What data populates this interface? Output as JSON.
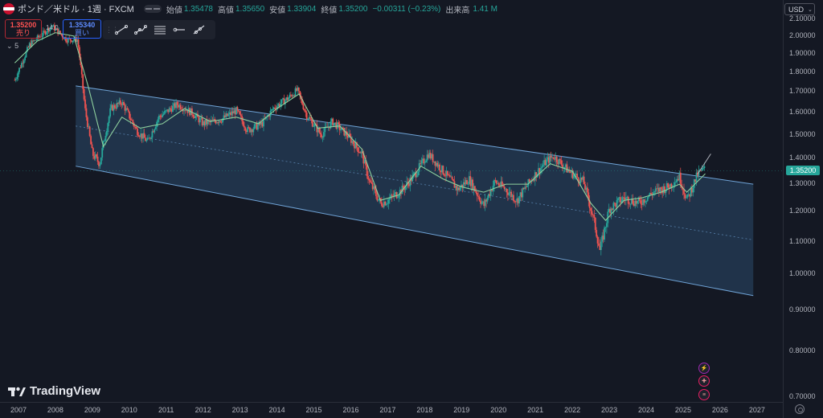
{
  "header": {
    "symbol": "ポンド／米ドル · 1週 · FXCM",
    "open_label": "始値",
    "open": "1.35478",
    "high_label": "高値",
    "high": "1.35650",
    "low_label": "安値",
    "low": "1.33904",
    "close_label": "終値",
    "close": "1.35200",
    "change": "−0.00311 (−0.23%)",
    "volume_label": "出来高",
    "volume": "1.41 M"
  },
  "trade": {
    "sell_price": "1.35200",
    "sell_label": "売り",
    "spread": "14.0",
    "buy_price": "1.35340",
    "buy_label": "買い"
  },
  "indicator": {
    "label": "5",
    "chevron": "⌄"
  },
  "currency": {
    "label": "USD",
    "chevron": "⌄"
  },
  "last_price_tag": "1.35200",
  "logo_text": "TradingView",
  "toolbar_icons": [
    "trend-line-icon",
    "multi-point-icon",
    "fib-lines-icon",
    "horizontal-ray-icon",
    "ray-icon"
  ],
  "colors": {
    "background": "#141823",
    "up": "#26a69a",
    "down": "#ef5350",
    "ma": "#8fd19e",
    "channel_fill": "#2a4a6b",
    "channel_edge": "#6fa3d6"
  },
  "chart_data": {
    "type": "candlestick",
    "series": [
      {
        "name": "",
        "type": "weekly price (approx. path)",
        "x": [
          2006.9,
          2007.3,
          2007.7,
          2007.9,
          2008.3,
          2008.6,
          2008.8,
          2009.0,
          2009.2,
          2009.5,
          2009.8,
          2010.2,
          2010.5,
          2010.8,
          2011.3,
          2011.7,
          2012.0,
          2012.5,
          2012.9,
          2013.2,
          2013.6,
          2013.9,
          2014.3,
          2014.55,
          2014.8,
          2015.2,
          2015.5,
          2015.9,
          2016.3,
          2016.5,
          2016.8,
          2017.0,
          2017.4,
          2017.7,
          2018.1,
          2018.5,
          2018.9,
          2019.2,
          2019.6,
          2019.9,
          2020.2,
          2020.5,
          2020.9,
          2021.3,
          2021.5,
          2021.9,
          2022.3,
          2022.6,
          2022.75,
          2023.0,
          2023.4,
          2023.8,
          2024.2,
          2024.6,
          2024.9,
          2025.1,
          2025.4,
          2025.6
        ],
        "y": [
          1.76,
          1.95,
          2.02,
          2.06,
          1.98,
          1.98,
          1.62,
          1.42,
          1.38,
          1.62,
          1.65,
          1.52,
          1.47,
          1.58,
          1.64,
          1.6,
          1.55,
          1.57,
          1.61,
          1.52,
          1.55,
          1.62,
          1.67,
          1.71,
          1.59,
          1.5,
          1.56,
          1.5,
          1.42,
          1.31,
          1.23,
          1.24,
          1.28,
          1.33,
          1.42,
          1.35,
          1.28,
          1.32,
          1.22,
          1.31,
          1.28,
          1.24,
          1.32,
          1.39,
          1.41,
          1.35,
          1.31,
          1.16,
          1.07,
          1.21,
          1.25,
          1.23,
          1.27,
          1.29,
          1.33,
          1.24,
          1.34,
          1.36
        ]
      },
      {
        "name": "",
        "type": "moving average",
        "x": [
          2006.9,
          2007.5,
          2008.0,
          2008.5,
          2008.9,
          2009.3,
          2009.8,
          2010.3,
          2010.9,
          2011.5,
          2012.2,
          2012.9,
          2013.5,
          2014.0,
          2014.6,
          2015.1,
          2015.7,
          2016.3,
          2016.8,
          2017.3,
          2017.9,
          2018.5,
          2019.0,
          2019.6,
          2020.2,
          2020.8,
          2021.4,
          2022.0,
          2022.5,
          2022.9,
          2023.4,
          2023.9,
          2024.4,
          2024.9,
          2025.1,
          2025.6
        ],
        "y": [
          1.85,
          1.97,
          2.02,
          2.0,
          1.72,
          1.45,
          1.58,
          1.53,
          1.55,
          1.62,
          1.56,
          1.58,
          1.55,
          1.62,
          1.69,
          1.53,
          1.54,
          1.44,
          1.24,
          1.26,
          1.37,
          1.32,
          1.29,
          1.27,
          1.3,
          1.3,
          1.38,
          1.35,
          1.23,
          1.17,
          1.24,
          1.25,
          1.27,
          1.3,
          1.27,
          1.34
        ]
      }
    ],
    "channel": {
      "upper": {
        "x": [
          2008.55,
          2026.9
        ],
        "y": [
          1.73,
          1.3
        ]
      },
      "lower": {
        "x": [
          2008.55,
          2026.9
        ],
        "y": [
          1.37,
          0.94
        ]
      },
      "mid_dashed": true
    },
    "trend_arrow": {
      "x": [
        2025.4,
        2025.75
      ],
      "y": [
        1.34,
        1.42
      ]
    },
    "last_price": 1.352,
    "y_ticks": [
      2.1,
      2.0,
      1.9,
      1.8,
      1.7,
      1.6,
      1.5,
      1.4,
      1.3,
      1.2,
      1.1,
      1.0,
      0.9,
      0.8,
      0.7
    ],
    "y_tick_labels": [
      "2.10000",
      "2.00000",
      "1.90000",
      "1.80000",
      "1.70000",
      "1.60000",
      "1.50000",
      "1.40000",
      "1.30000",
      "1.20000",
      "1.10000",
      "1.00000",
      "0.90000",
      "0.80000",
      "0.70000"
    ],
    "x_ticks": [
      "2007",
      "2008",
      "2009",
      "2010",
      "2011",
      "2012",
      "2013",
      "2014",
      "2015",
      "2016",
      "2017",
      "2018",
      "2019",
      "2020",
      "2021",
      "2022",
      "2023",
      "2024",
      "2025",
      "2026",
      "2027"
    ],
    "ylim": [
      0.69,
      2.11
    ],
    "xlim": [
      2006.5,
      2027.7
    ],
    "grid": false,
    "log_scale": true
  }
}
